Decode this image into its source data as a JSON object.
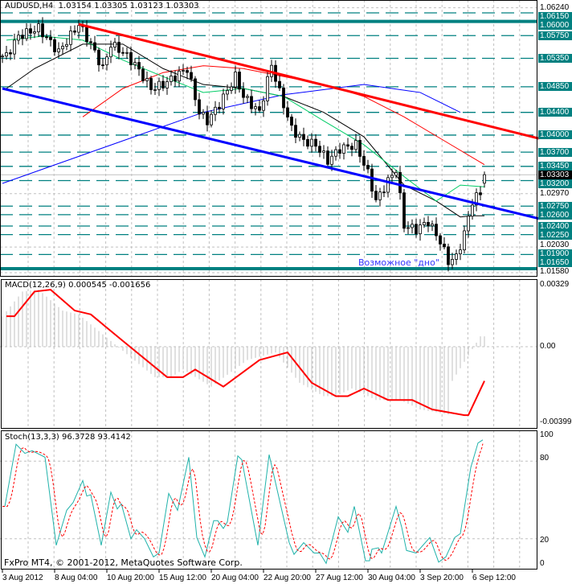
{
  "header": {
    "symbol": "AUDUSD,H4",
    "open": "1.03154",
    "high": "1.03305",
    "low": "1.03123",
    "close": "1.03303"
  },
  "annotation": "Возможное \"дно\"",
  "copyright": "FxPro MT4, © 2001-2012, MetaQuotes Software Corp.",
  "colors": {
    "level": "#008080",
    "trend_red": "#ff0000",
    "trend_blue": "#0000ff",
    "ma_blue": "#0000ff",
    "ma_red": "#ff0000",
    "ma_black": "#000000",
    "ma_green": "#00cc66",
    "stoch_main": "#20b2aa",
    "stoch_signal": "#ff0000",
    "annotation": "#3333ff"
  },
  "chart_data": {
    "type": "candlestick",
    "price_axis": {
      "max_label": "1.06240",
      "plain_labels": [
        "1.06240",
        "1.02970",
        "1.02030",
        "1.01580"
      ],
      "current_price": "1.03303",
      "ylim": [
        1.0158,
        1.0624
      ]
    },
    "levels_dashed": [
      "1.06150",
      "1.05750",
      "1.05350",
      "1.04850",
      "1.04400",
      "1.04000",
      "1.03700",
      "1.03450",
      "1.03200",
      "1.02750",
      "1.02600",
      "1.02400",
      "1.02250",
      "1.01900"
    ],
    "levels_solid": [
      "1.06000",
      "1.01650"
    ],
    "price_path": [
      [
        1,
        1.0539
      ],
      [
        4,
        1.0574
      ],
      [
        9,
        1.0588
      ],
      [
        14,
        1.0546
      ],
      [
        19,
        1.0595
      ],
      [
        22,
        1.056
      ],
      [
        25,
        1.0517
      ],
      [
        27,
        1.056
      ],
      [
        30,
        1.0546
      ],
      [
        33,
        1.0524
      ],
      [
        37,
        1.0482
      ],
      [
        40,
        1.0489
      ],
      [
        43,
        1.0503
      ],
      [
        46,
        1.0517
      ],
      [
        49,
        1.044
      ],
      [
        51,
        1.0425
      ],
      [
        54,
        1.0454
      ],
      [
        58,
        1.0503
      ],
      [
        60,
        1.0468
      ],
      [
        64,
        1.044
      ],
      [
        67,
        1.0524
      ],
      [
        69,
        1.0475
      ],
      [
        72,
        1.0411
      ],
      [
        75,
        1.039
      ],
      [
        78,
        1.0383
      ],
      [
        81,
        1.0355
      ],
      [
        84,
        1.0376
      ],
      [
        88,
        1.0383
      ],
      [
        91,
        1.0333
      ],
      [
        93,
        1.0284
      ],
      [
        96,
        1.0319
      ],
      [
        98,
        1.034
      ],
      [
        100,
        1.0241
      ],
      [
        103,
        1.0234
      ],
      [
        106,
        1.0248
      ],
      [
        109,
        1.0213
      ],
      [
        111,
        1.0178
      ],
      [
        113,
        1.0185
      ],
      [
        115,
        1.0227
      ],
      [
        117,
        1.0284
      ],
      [
        119,
        1.0298
      ],
      [
        120,
        1.033
      ]
    ],
    "trendlines": [
      {
        "name": "resistance",
        "color": "#ff0000",
        "points": [
          [
            19,
            1.0595
          ],
          [
            133.6,
            1.0394
          ]
        ]
      },
      {
        "name": "support",
        "color": "#0000ff",
        "points": [
          [
            0,
            1.0482
          ],
          [
            133.6,
            1.0253
          ]
        ]
      }
    ],
    "moving_averages": [
      {
        "name": "ma-blue",
        "color": "#0000ff",
        "points": [
          [
            0,
            1.0315
          ],
          [
            30,
            1.039
          ],
          [
            50,
            1.044
          ],
          [
            70,
            1.0471
          ],
          [
            90,
            1.0489
          ],
          [
            104,
            1.0475
          ],
          [
            114,
            1.044
          ]
        ]
      },
      {
        "name": "ma-red",
        "color": "#ff0000",
        "points": [
          [
            20,
            1.0432
          ],
          [
            30,
            1.0482
          ],
          [
            40,
            1.051
          ],
          [
            50,
            1.0522
          ],
          [
            60,
            1.0517
          ],
          [
            70,
            1.0503
          ],
          [
            80,
            1.0489
          ],
          [
            90,
            1.0468
          ],
          [
            100,
            1.0432
          ],
          [
            110,
            1.039
          ],
          [
            120,
            1.0348
          ]
        ]
      },
      {
        "name": "ma-black",
        "color": "#000000",
        "points": [
          [
            1,
            1.0482
          ],
          [
            8,
            1.0517
          ],
          [
            20,
            1.056
          ],
          [
            30,
            1.056
          ],
          [
            40,
            1.0517
          ],
          [
            50,
            1.0489
          ],
          [
            60,
            1.0482
          ],
          [
            70,
            1.0468
          ],
          [
            80,
            1.044
          ],
          [
            90,
            1.0397
          ],
          [
            100,
            1.0312
          ],
          [
            108,
            1.0284
          ],
          [
            114,
            1.0256
          ],
          [
            117,
            1.0258
          ],
          [
            120,
            1.0258
          ]
        ]
      },
      {
        "name": "ma-green",
        "color": "#00cc66",
        "points": [
          [
            1,
            1.0567
          ],
          [
            10,
            1.0574
          ],
          [
            20,
            1.0567
          ],
          [
            30,
            1.0532
          ],
          [
            40,
            1.0503
          ],
          [
            50,
            1.0475
          ],
          [
            60,
            1.0482
          ],
          [
            70,
            1.0468
          ],
          [
            80,
            1.0425
          ],
          [
            90,
            1.0383
          ],
          [
            100,
            1.0327
          ],
          [
            108,
            1.0284
          ],
          [
            114,
            1.0312
          ],
          [
            120,
            1.0309
          ]
        ]
      }
    ],
    "x_labels": [
      {
        "bar": 0,
        "label": "3 Aug 2012"
      },
      {
        "bar": 13,
        "label": "8 Aug 04:00"
      },
      {
        "bar": 26,
        "label": "10 Aug 20:00"
      },
      {
        "bar": 39,
        "label": "15 Aug 12:00"
      },
      {
        "bar": 52,
        "label": "20 Aug 04:00"
      },
      {
        "bar": 65,
        "label": "22 Aug 20:00"
      },
      {
        "bar": 78,
        "label": "27 Aug 12:00"
      },
      {
        "bar": 91,
        "label": "30 Aug 04:00"
      },
      {
        "bar": 104,
        "label": "3 Sep 20:00"
      },
      {
        "bar": 117,
        "label": "6 Sep 12:00"
      }
    ],
    "macd": {
      "title": "MACD(12,26,9) 0.000545 -0.001656",
      "axis_labels": [
        "0.00329",
        "0.00",
        "-0.00399"
      ],
      "ylim": [
        -0.00399,
        0.00329
      ],
      "histogram_last": 0.000545,
      "signal": [
        [
          1,
          0.0016
        ],
        [
          3,
          0.0016
        ],
        [
          8,
          0.0029
        ],
        [
          12,
          0.003
        ],
        [
          18,
          0.0019
        ],
        [
          22,
          0.0017
        ],
        [
          30,
          0.0003
        ],
        [
          41,
          -0.0016
        ],
        [
          45,
          -0.0016
        ],
        [
          48,
          -0.0012
        ],
        [
          55,
          -0.0021
        ],
        [
          64,
          -0.0007
        ],
        [
          71,
          -0.0003
        ],
        [
          77,
          -0.0019
        ],
        [
          83,
          -0.0026
        ],
        [
          86,
          -0.0026
        ],
        [
          90,
          -0.0022
        ],
        [
          96,
          -0.0028
        ],
        [
          102,
          -0.0028
        ],
        [
          107,
          -0.0033
        ],
        [
          115,
          -0.0036
        ],
        [
          116,
          -0.0036
        ],
        [
          120,
          -0.0018
        ]
      ]
    },
    "stochastic": {
      "title": "Stoch(13,3,3) 96.3728 93.4142",
      "axis_labels": [
        "100",
        "80",
        "20",
        "0"
      ],
      "ylim": [
        0,
        100
      ],
      "levels": [
        80,
        20
      ],
      "main": [
        [
          0.6,
          45
        ],
        [
          3.4,
          93
        ],
        [
          5.6,
          86
        ],
        [
          7.4,
          88
        ],
        [
          10.6,
          83
        ],
        [
          13.4,
          15
        ],
        [
          16,
          42
        ],
        [
          17.6,
          48
        ],
        [
          20,
          65
        ],
        [
          21,
          53
        ],
        [
          22,
          54
        ],
        [
          24.6,
          15
        ],
        [
          27,
          56
        ],
        [
          28.6,
          43
        ],
        [
          29.6,
          47
        ],
        [
          32,
          20
        ],
        [
          33.4,
          27
        ],
        [
          35.4,
          20
        ],
        [
          37.6,
          6
        ],
        [
          39,
          9
        ],
        [
          41.4,
          55
        ],
        [
          43.6,
          42
        ],
        [
          46.4,
          83
        ],
        [
          48.4,
          21
        ],
        [
          50.4,
          6
        ],
        [
          52.6,
          34
        ],
        [
          53.6,
          34
        ],
        [
          55,
          28
        ],
        [
          56,
          33
        ],
        [
          58.6,
          84
        ],
        [
          59.6,
          81
        ],
        [
          63.6,
          15
        ],
        [
          66.4,
          85
        ],
        [
          71.4,
          17
        ],
        [
          72.6,
          8
        ],
        [
          75,
          17
        ],
        [
          77.6,
          9
        ],
        [
          79,
          9
        ],
        [
          80.6,
          1
        ],
        [
          83.6,
          37
        ],
        [
          86,
          25
        ],
        [
          87.6,
          45
        ],
        [
          90.4,
          3
        ],
        [
          91.4,
          3
        ],
        [
          92,
          12
        ],
        [
          93.6,
          13
        ],
        [
          94.4,
          9
        ],
        [
          98,
          45
        ],
        [
          99.4,
          29
        ],
        [
          100.6,
          11
        ],
        [
          103,
          9
        ],
        [
          106.4,
          21
        ],
        [
          108.6,
          2
        ],
        [
          110.4,
          6
        ],
        [
          112.6,
          21
        ],
        [
          114,
          24
        ],
        [
          116.6,
          75
        ],
        [
          118.4,
          94
        ],
        [
          119.6,
          96.37
        ]
      ],
      "signal_last": 93.41
    }
  }
}
